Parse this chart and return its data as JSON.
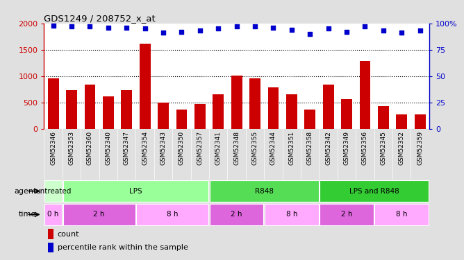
{
  "title": "GDS1249 / 208752_x_at",
  "samples": [
    "GSM52346",
    "GSM52353",
    "GSM52360",
    "GSM52340",
    "GSM52347",
    "GSM52354",
    "GSM52343",
    "GSM52350",
    "GSM52357",
    "GSM52341",
    "GSM52348",
    "GSM52355",
    "GSM52344",
    "GSM52351",
    "GSM52358",
    "GSM52342",
    "GSM52349",
    "GSM52356",
    "GSM52345",
    "GSM52352",
    "GSM52359"
  ],
  "counts": [
    960,
    730,
    840,
    610,
    730,
    1620,
    500,
    370,
    470,
    660,
    1010,
    960,
    790,
    650,
    360,
    840,
    560,
    1290,
    430,
    270,
    270
  ],
  "percentiles": [
    98,
    97,
    97,
    96,
    96,
    95,
    91,
    92,
    93,
    95,
    97,
    97,
    96,
    94,
    90,
    95,
    92,
    97,
    93,
    91,
    93
  ],
  "ylim_left": [
    0,
    2000
  ],
  "ylim_right": [
    0,
    100
  ],
  "yticks_left": [
    0,
    500,
    1000,
    1500,
    2000
  ],
  "yticks_right": [
    0,
    25,
    50,
    75,
    100
  ],
  "ytick_right_labels": [
    "0",
    "25",
    "50",
    "75",
    "100%"
  ],
  "bar_color": "#cc0000",
  "dot_color": "#0000cc",
  "grid_lines": [
    500,
    1000,
    1500
  ],
  "agent_groups": [
    {
      "label": "untreated",
      "start": 0,
      "end": 1,
      "color": "#ccffcc"
    },
    {
      "label": "LPS",
      "start": 1,
      "end": 9,
      "color": "#99ff99"
    },
    {
      "label": "R848",
      "start": 9,
      "end": 15,
      "color": "#55dd55"
    },
    {
      "label": "LPS and R848",
      "start": 15,
      "end": 21,
      "color": "#33cc33"
    }
  ],
  "time_groups": [
    {
      "label": "0 h",
      "start": 0,
      "end": 1,
      "color": "#ffaaff"
    },
    {
      "label": "2 h",
      "start": 1,
      "end": 5,
      "color": "#dd66dd"
    },
    {
      "label": "8 h",
      "start": 5,
      "end": 9,
      "color": "#ffaaff"
    },
    {
      "label": "2 h",
      "start": 9,
      "end": 12,
      "color": "#dd66dd"
    },
    {
      "label": "8 h",
      "start": 12,
      "end": 15,
      "color": "#ffaaff"
    },
    {
      "label": "2 h",
      "start": 15,
      "end": 18,
      "color": "#dd66dd"
    },
    {
      "label": "8 h",
      "start": 18,
      "end": 21,
      "color": "#ffaaff"
    }
  ],
  "agent_label": "agent",
  "time_label": "time",
  "legend_count": "count",
  "legend_percentile": "percentile rank within the sample",
  "bg_color": "#e0e0e0",
  "plot_bg": "#ffffff",
  "xtick_bg": "#d0d0d0"
}
